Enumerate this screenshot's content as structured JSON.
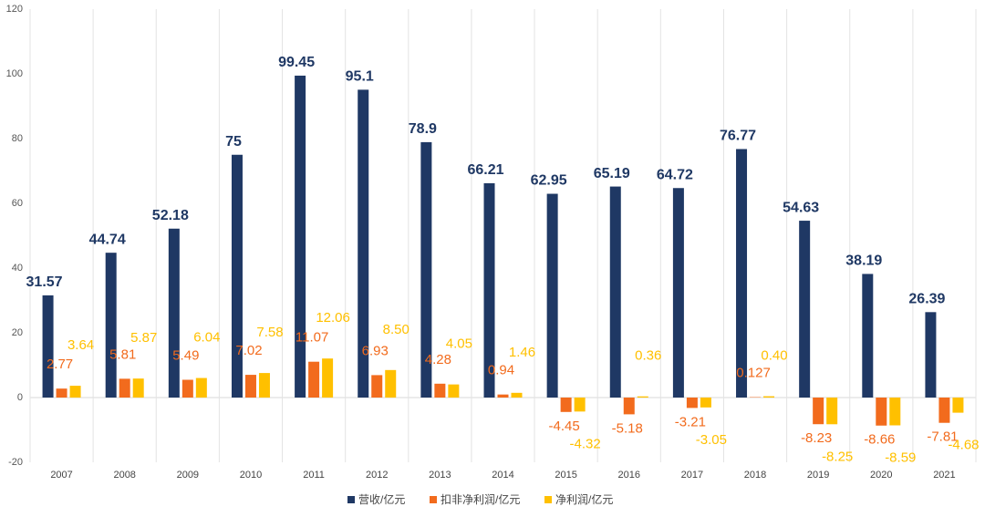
{
  "chart_data": {
    "type": "bar",
    "categories": [
      "2007",
      "2008",
      "2009",
      "2010",
      "2011",
      "2012",
      "2013",
      "2014",
      "2015",
      "2016",
      "2017",
      "2018",
      "2019",
      "2020",
      "2021"
    ],
    "series": [
      {
        "name": "营收/亿元",
        "color": "#1f3864",
        "values": [
          31.57,
          44.74,
          52.18,
          75,
          99.45,
          95.1,
          78.9,
          66.21,
          62.95,
          65.19,
          64.72,
          76.77,
          54.63,
          38.19,
          26.39
        ]
      },
      {
        "name": "扣非净利润/亿元",
        "color": "#f26b1d",
        "values": [
          2.77,
          5.81,
          5.49,
          7.02,
          11.07,
          6.93,
          4.28,
          0.94,
          -4.45,
          -5.18,
          -3.21,
          0.127,
          -8.23,
          -8.66,
          -7.81
        ]
      },
      {
        "name": "净利润/亿元",
        "color": "#ffc000",
        "values": [
          3.64,
          5.87,
          6.04,
          7.58,
          12.06,
          8.5,
          4.05,
          1.46,
          -4.32,
          0.36,
          -3.05,
          0.4,
          -8.25,
          -8.59,
          -4.68
        ],
        "value_labels": [
          "3.64",
          "5.87",
          "6.04",
          "7.58",
          "12.06",
          "8.50",
          "4.05",
          "1.46",
          "-4.32",
          "0.36",
          "-3.05",
          "0.40",
          "-8.25",
          "-8.59",
          "-4.68"
        ]
      }
    ],
    "ylim": [
      -20,
      120
    ],
    "yticks": [
      -20,
      0,
      20,
      40,
      60,
      80,
      100,
      120
    ],
    "grid": true,
    "legend": "bottom"
  }
}
